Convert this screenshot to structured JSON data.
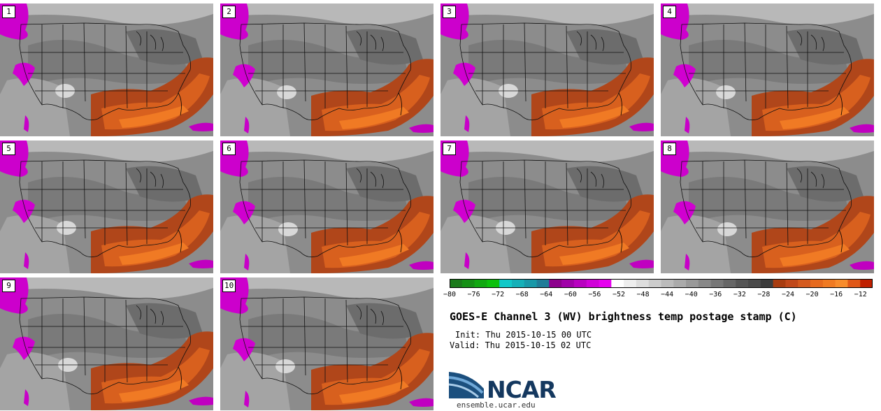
{
  "figure": {
    "title": "GOES-E Channel 3 (WV) brightness temp postage stamp (C)",
    "init": "Init: Thu 2015-10-15 00 UTC",
    "valid": "Valid: Thu 2015-10-15 02 UTC",
    "logo_text": "NCAR",
    "logo_url": "ensemble.ucar.edu"
  },
  "panels": [
    "1",
    "2",
    "3",
    "4",
    "5",
    "6",
    "7",
    "8",
    "9",
    "10"
  ],
  "chart_data": {
    "type": "heatmap",
    "title": "GOES-E Channel 3 (WV) brightness temp postage stamp (C)",
    "members": [
      "1",
      "2",
      "3",
      "4",
      "5",
      "6",
      "7",
      "8",
      "9",
      "10"
    ],
    "colorbar": {
      "ticks": [
        -80,
        -76,
        -72,
        -68,
        -64,
        -60,
        -56,
        -52,
        -48,
        -44,
        -40,
        -36,
        -32,
        -28,
        -24,
        -20,
        -16,
        -12
      ],
      "range": [
        -80,
        -10
      ],
      "colors": [
        "#1a7a1a",
        "#149014",
        "#10a810",
        "#0cc00c",
        "#10c8c8",
        "#14b0b8",
        "#1898a8",
        "#207c98",
        "#8c008c",
        "#a000a8",
        "#b800c0",
        "#d000d8",
        "#e600ee",
        "#ffffff",
        "#eeeeee",
        "#dddddd",
        "#cccccc",
        "#bbbbbb",
        "#aaaaaa",
        "#999999",
        "#888888",
        "#777777",
        "#666666",
        "#555555",
        "#4a4a4a",
        "#3c3c3c",
        "#a83c10",
        "#c0481a",
        "#d45a1e",
        "#e66a1e",
        "#f07a22",
        "#f88c2c",
        "#e05818",
        "#c02000"
      ]
    }
  }
}
